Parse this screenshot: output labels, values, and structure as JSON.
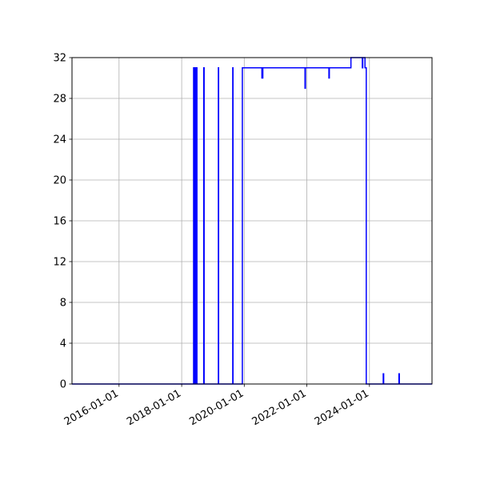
{
  "chart_data": {
    "type": "line",
    "title": "",
    "xlabel": "",
    "ylabel": "",
    "xlim": [
      "2014-07-01",
      "2025-12-31"
    ],
    "ylim": [
      0,
      32
    ],
    "grid": true,
    "legend": "none",
    "line_color": "#0000ff",
    "yticks": [
      0,
      4,
      8,
      12,
      16,
      20,
      24,
      28,
      32
    ],
    "xticks": [
      "2016-01-01",
      "2018-01-01",
      "2020-01-01",
      "2022-01-01",
      "2024-01-01"
    ],
    "series": [
      {
        "points": [
          [
            "2014-07-01",
            0
          ],
          [
            "2018-05-20",
            0
          ],
          [
            "2018-05-20",
            31
          ],
          [
            "2018-05-30",
            31
          ],
          [
            "2018-05-30",
            0
          ],
          [
            "2018-06-05",
            0
          ],
          [
            "2018-06-05",
            31
          ],
          [
            "2018-06-15",
            31
          ],
          [
            "2018-06-15",
            0
          ],
          [
            "2018-06-20",
            0
          ],
          [
            "2018-06-20",
            31
          ],
          [
            "2018-06-28",
            31
          ],
          [
            "2018-06-28",
            0
          ],
          [
            "2018-09-15",
            0
          ],
          [
            "2018-09-15",
            31
          ],
          [
            "2018-09-20",
            31
          ],
          [
            "2018-09-20",
            0
          ],
          [
            "2019-03-05",
            0
          ],
          [
            "2019-03-05",
            31
          ],
          [
            "2019-03-08",
            31
          ],
          [
            "2019-03-08",
            0
          ],
          [
            "2019-08-20",
            0
          ],
          [
            "2019-08-20",
            31
          ],
          [
            "2019-08-23",
            31
          ],
          [
            "2019-08-23",
            0
          ],
          [
            "2019-12-10",
            0
          ],
          [
            "2019-12-10",
            31
          ],
          [
            "2020-07-25",
            31
          ],
          [
            "2020-07-25",
            30
          ],
          [
            "2020-08-05",
            30
          ],
          [
            "2020-08-05",
            31
          ],
          [
            "2021-12-10",
            31
          ],
          [
            "2021-12-10",
            29
          ],
          [
            "2021-12-15",
            29
          ],
          [
            "2021-12-15",
            31
          ],
          [
            "2022-09-15",
            31
          ],
          [
            "2022-09-15",
            30
          ],
          [
            "2022-09-20",
            30
          ],
          [
            "2022-09-20",
            31
          ],
          [
            "2023-05-30",
            31
          ],
          [
            "2023-05-30",
            32
          ],
          [
            "2023-10-10",
            32
          ],
          [
            "2023-10-10",
            31
          ],
          [
            "2023-10-15",
            31
          ],
          [
            "2023-10-15",
            32
          ],
          [
            "2023-11-10",
            32
          ],
          [
            "2023-11-10",
            31
          ],
          [
            "2023-11-25",
            31
          ],
          [
            "2023-11-25",
            0
          ],
          [
            "2024-06-10",
            0
          ],
          [
            "2024-06-10",
            1
          ],
          [
            "2024-06-15",
            1
          ],
          [
            "2024-06-15",
            0
          ],
          [
            "2024-12-10",
            0
          ],
          [
            "2024-12-10",
            1
          ],
          [
            "2024-12-15",
            1
          ],
          [
            "2024-12-15",
            0
          ],
          [
            "2025-12-31",
            0
          ]
        ]
      }
    ]
  }
}
